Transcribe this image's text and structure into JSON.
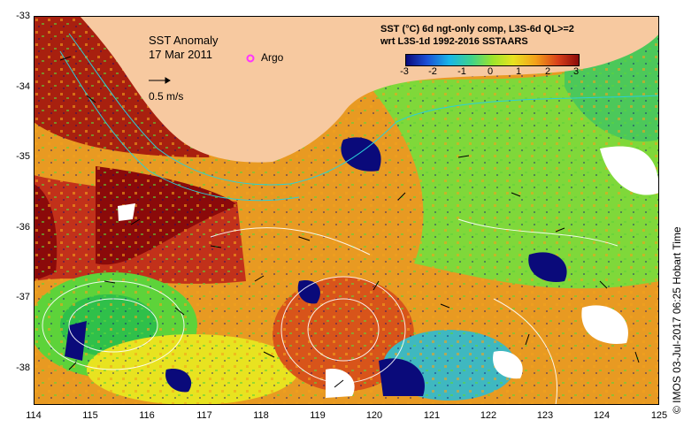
{
  "map": {
    "title": "SST Anomaly",
    "date": "17 Mar 2011",
    "argo_label": "Argo",
    "scale_label": "0.5 m/s",
    "legend_line1": "SST (°C) 6d ngt-only comp, L3S-6d QL>=2",
    "legend_line2": "wrt L3S-1d 1992-2016 SSTAARS",
    "colorbar_ticks": [
      "-3",
      "-2",
      "-1",
      "0",
      "1",
      "2",
      "3"
    ],
    "credit": "© IMOS 03-Jul-2017 06:25 Hobart Time",
    "y_ticks": [
      "-33",
      "-34",
      "-35",
      "-36",
      "-37",
      "-38"
    ],
    "x_ticks": [
      "114",
      "115",
      "116",
      "117",
      "118",
      "119",
      "120",
      "121",
      "122",
      "123",
      "124",
      "125"
    ],
    "colors": {
      "land": "#f7c9a0",
      "hot": "#8b0a0a",
      "warm": "#d8541a",
      "mild": "#f3a11a",
      "neutral": "#e8e320",
      "cool": "#5dd33a",
      "cold": "#0a0a7a",
      "argo": "#ff33ff"
    }
  }
}
